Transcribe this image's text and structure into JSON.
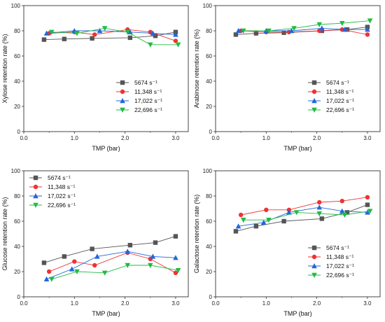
{
  "panel_order": [
    "xylose",
    "arabinose",
    "glucose",
    "galactose"
  ],
  "legend_names": [
    "5674 s⁻¹",
    "11,348 s⁻¹",
    "17,022 s⁻¹",
    "22,696 s⁻¹"
  ],
  "series_colors": [
    "#555555",
    "#ee3333",
    "#2266dd",
    "#22bb44"
  ],
  "series_markers": [
    "square",
    "circle",
    "triangle-up",
    "triangle-down"
  ],
  "chart_data": [
    {
      "id": "xylose",
      "type": "line",
      "xlabel": "TMP (bar)",
      "ylabel": "Xylose retention rate (%)",
      "xlim": [
        0,
        3.25
      ],
      "ylim": [
        0,
        100
      ],
      "xticks": [
        "0.0",
        "1.0",
        "2.0",
        "3.0"
      ],
      "xtick_values": [
        0,
        1,
        2,
        3
      ],
      "yticks": [
        "0",
        "20",
        "40",
        "60",
        "80",
        "100"
      ],
      "ytick_values": [
        0,
        20,
        40,
        60,
        80,
        100
      ],
      "legend_position": "bottom-right",
      "series": [
        {
          "name": "5674 s⁻¹",
          "x": [
            0.4,
            0.8,
            1.35,
            2.1,
            2.6,
            3.0
          ],
          "y": [
            73,
            73.5,
            74,
            74.5,
            76,
            79
          ]
        },
        {
          "name": "11,348 s⁻¹",
          "x": [
            0.5,
            1.0,
            1.4,
            2.05,
            2.5,
            3.0
          ],
          "y": [
            78,
            79,
            77,
            81,
            79,
            72
          ]
        },
        {
          "name": "17,022 s⁻¹",
          "x": [
            0.45,
            1.0,
            1.5,
            2.1,
            2.55,
            3.0
          ],
          "y": [
            78,
            80,
            80,
            79,
            78,
            77
          ]
        },
        {
          "name": "22,696 s⁻¹",
          "x": [
            0.55,
            1.05,
            1.6,
            2.05,
            2.5,
            3.05
          ],
          "y": [
            79,
            78,
            82,
            79,
            69,
            69
          ]
        }
      ]
    },
    {
      "id": "arabinose",
      "type": "line",
      "xlabel": "TMP (bar)",
      "ylabel": "Arabinose retention rate (%)",
      "xlim": [
        0,
        3.25
      ],
      "ylim": [
        0,
        100
      ],
      "xticks": [
        "0.0",
        "1.0",
        "2.0",
        "3.0"
      ],
      "xtick_values": [
        0,
        1,
        2,
        3
      ],
      "yticks": [
        "0",
        "20",
        "40",
        "60",
        "80",
        "100"
      ],
      "ytick_values": [
        0,
        20,
        40,
        60,
        80,
        100
      ],
      "legend_position": "bottom-right",
      "series": [
        {
          "name": "5674 s⁻¹",
          "x": [
            0.4,
            0.8,
            1.35,
            2.1,
            2.6,
            3.0
          ],
          "y": [
            77,
            78,
            78.5,
            80,
            81,
            83
          ]
        },
        {
          "name": "11,348 s⁻¹",
          "x": [
            0.5,
            1.0,
            1.45,
            2.05,
            2.5,
            3.0
          ],
          "y": [
            80,
            79,
            79,
            80,
            81,
            77
          ]
        },
        {
          "name": "17,022 s⁻¹",
          "x": [
            0.45,
            1.0,
            1.5,
            2.1,
            2.55,
            3.0
          ],
          "y": [
            80,
            80,
            80,
            82,
            81,
            81
          ]
        },
        {
          "name": "22,696 s⁻¹",
          "x": [
            0.55,
            1.05,
            1.55,
            2.05,
            2.5,
            3.05
          ],
          "y": [
            80,
            80,
            82,
            85,
            86,
            88
          ]
        }
      ]
    },
    {
      "id": "glucose",
      "type": "line",
      "xlabel": "TMP (bar)",
      "ylabel": "Glucose retention rate (%)",
      "xlim": [
        0,
        3.25
      ],
      "ylim": [
        0,
        100
      ],
      "xticks": [
        "0.0",
        "1.0",
        "2.0",
        "3.0"
      ],
      "xtick_values": [
        0,
        1,
        2,
        3
      ],
      "yticks": [
        "0",
        "20",
        "40",
        "60",
        "80",
        "100"
      ],
      "ytick_values": [
        0,
        20,
        40,
        60,
        80,
        100
      ],
      "legend_position": "top-left",
      "series": [
        {
          "name": "5674 s⁻¹",
          "x": [
            0.4,
            0.8,
            1.35,
            2.1,
            2.6,
            3.0
          ],
          "y": [
            27,
            32,
            38,
            41,
            43,
            48
          ]
        },
        {
          "name": "11,348 s⁻¹",
          "x": [
            0.5,
            1.0,
            1.4,
            2.05,
            2.5,
            3.0
          ],
          "y": [
            20,
            28,
            25,
            35,
            30,
            19
          ]
        },
        {
          "name": "17,022 s⁻¹",
          "x": [
            0.45,
            0.95,
            1.45,
            2.05,
            2.55,
            3.0
          ],
          "y": [
            14,
            22,
            32,
            36,
            32,
            31
          ]
        },
        {
          "name": "22,696 s⁻¹",
          "x": [
            0.55,
            1.05,
            1.6,
            2.05,
            2.5,
            3.05
          ],
          "y": [
            14,
            20,
            19,
            25,
            25,
            21
          ]
        }
      ]
    },
    {
      "id": "galactose",
      "type": "line",
      "xlabel": "TMP (bar)",
      "ylabel": "Galactose retention rate (%)",
      "xlim": [
        0,
        3.25
      ],
      "ylim": [
        0,
        100
      ],
      "xticks": [
        "0.0",
        "1.0",
        "2.0",
        "3.0"
      ],
      "xtick_values": [
        0,
        1,
        2,
        3
      ],
      "yticks": [
        "0",
        "20",
        "40",
        "60",
        "80",
        "100"
      ],
      "ytick_values": [
        0,
        20,
        40,
        60,
        80,
        100
      ],
      "legend_position": "bottom-right",
      "series": [
        {
          "name": "5674 s⁻¹",
          "x": [
            0.4,
            0.8,
            1.35,
            2.1,
            2.6,
            3.0
          ],
          "y": [
            52,
            56,
            60,
            62,
            67,
            73
          ]
        },
        {
          "name": "11,348 s⁻¹",
          "x": [
            0.5,
            1.0,
            1.45,
            2.05,
            2.5,
            3.0
          ],
          "y": [
            65,
            69,
            69,
            75,
            76,
            79
          ]
        },
        {
          "name": "17,022 s⁻¹",
          "x": [
            0.45,
            0.95,
            1.45,
            2.05,
            2.5,
            3.0
          ],
          "y": [
            56,
            59,
            67,
            71,
            68,
            67
          ]
        },
        {
          "name": "22,696 s⁻¹",
          "x": [
            0.55,
            1.05,
            1.6,
            2.05,
            2.55,
            3.05
          ],
          "y": [
            61,
            61,
            67,
            66,
            65,
            68
          ]
        }
      ]
    }
  ]
}
